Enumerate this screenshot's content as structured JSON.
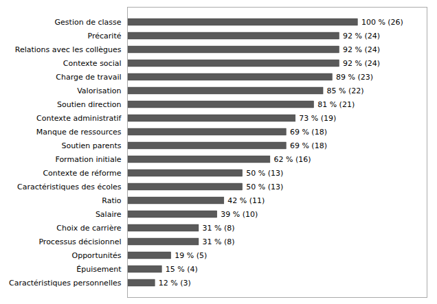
{
  "chart_data": {
    "type": "bar",
    "orientation": "horizontal",
    "categories": [
      "Gestion de classe",
      "Précarité",
      "Relations avec les collègues",
      "Contexte social",
      "Charge de travail",
      "Valorisation",
      "Soutien direction",
      "Contexte administratif",
      "Manque de ressources",
      "Soutien parents",
      "Formation initiale",
      "Contexte de réforme",
      "Caractéristiques des écoles",
      "Ratio",
      "Salaire",
      "Choix de carrière",
      "Processus décisionnel",
      "Opportunités",
      "Épuisement",
      "Caractéristiques personnelles"
    ],
    "values": [
      100,
      92,
      92,
      92,
      89,
      85,
      81,
      73,
      69,
      69,
      62,
      50,
      50,
      42,
      39,
      31,
      31,
      19,
      15,
      12
    ],
    "value_labels": [
      "100 % (26)",
      "92 % (24)",
      "92 % (24)",
      "92 % (24)",
      "89 % (23)",
      "85 % (22)",
      "81 % (21)",
      "73 % (19)",
      "69 % (18)",
      "69 % (18)",
      "62 % (16)",
      "50 % (13)",
      "50 % (13)",
      "42 % (11)",
      "39 % (10)",
      "31 % (8)",
      "31 % (8)",
      "19 % (5)",
      "15 % (4)",
      "12 % (3)"
    ],
    "color": "#5a5a5a",
    "xlim": [
      0,
      130
    ],
    "data_labels": true,
    "tick_labels": "y",
    "grid": false
  }
}
